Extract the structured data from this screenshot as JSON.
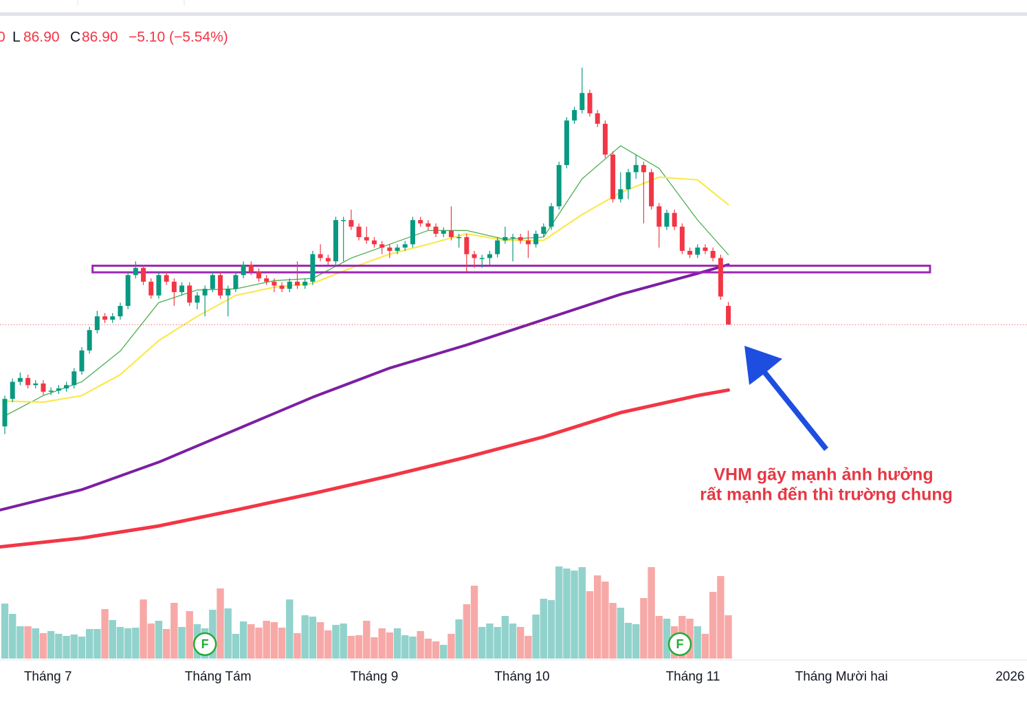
{
  "chart_data": {
    "type": "candlestick",
    "header": {
      "partial": "0",
      "low_label": "L",
      "low": "86.90",
      "close_label": "C",
      "close": "86.90",
      "change": "−5.10 (−5.54%)"
    },
    "annotation": [
      "VHM gãy mạnh ảnh hưởng",
      "rất mạnh đến thì trường chung"
    ],
    "xlim": [
      -0.625,
      132.8
    ],
    "ylim": [
      26.2,
      143.4
    ],
    "vlim": [
      0,
      30
    ],
    "xticks": [
      {
        "value": 5.6,
        "label": "Tháng 7"
      },
      {
        "value": 27.7,
        "label": "Tháng Tám"
      },
      {
        "value": 48,
        "label": "Tháng 9"
      },
      {
        "value": 67.2,
        "label": "Tháng 10"
      },
      {
        "value": 89.4,
        "label": "Tháng 11"
      },
      {
        "value": 108.7,
        "label": "Tháng Mười hai"
      },
      {
        "value": 130.6,
        "label": "2026"
      }
    ],
    "up_color": "#089981",
    "down_color": "#f23645",
    "volume_up_color": "#92d2cc",
    "volume_down_color": "#f7a9a7",
    "open": [
      68.4,
      73.4,
      76.5,
      77.2,
      75.9,
      76.2,
      74.7,
      74.9,
      75.3,
      75.9,
      78.4,
      82.2,
      85.9,
      88.4,
      87.8,
      88.4,
      90.3,
      95.9,
      97.2,
      94.7,
      92.2,
      95.9,
      94.7,
      92.8,
      94.0,
      90.9,
      92.2,
      93.4,
      95.9,
      92.2,
      93.4,
      95.9,
      97.8,
      96.5,
      95.3,
      94.7,
      94.0,
      93.4,
      94.7,
      94.0,
      94.7,
      99.7,
      99.0,
      98.4,
      105.9,
      105.9,
      104.7,
      102.8,
      102.2,
      101.5,
      100.9,
      100.3,
      100.9,
      101.5,
      105.9,
      105.3,
      104.7,
      103.4,
      104.0,
      102.8,
      102.8,
      99.7,
      99.0,
      99.0,
      99.7,
      102.2,
      102.8,
      102.8,
      102.2,
      101.5,
      103.4,
      104.7,
      108.4,
      115.9,
      124.0,
      125.9,
      129.0,
      125.3,
      123.4,
      117.8,
      109.7,
      111.5,
      114.6,
      115.9,
      114.6,
      108.4,
      104.7,
      107.2,
      104.7,
      100.3,
      99.6,
      100.9,
      100.3,
      99.0,
      90.3
    ],
    "high": [
      74.0,
      77.1,
      78.2,
      77.8,
      76.8,
      76.8,
      75.5,
      75.9,
      76.5,
      79.0,
      82.8,
      86.5,
      89.4,
      89.0,
      89.0,
      90.9,
      96.5,
      98.4,
      97.8,
      95.3,
      96.5,
      96.5,
      95.3,
      94.6,
      94.6,
      92.8,
      94.0,
      96.5,
      96.5,
      94.0,
      96.5,
      98.4,
      98.4,
      97.1,
      95.9,
      95.3,
      94.6,
      95.3,
      98.4,
      95.3,
      100.3,
      101.5,
      99.6,
      106.5,
      106.5,
      107.8,
      105.3,
      104.7,
      102.8,
      102.1,
      101.5,
      101.5,
      102.1,
      106.5,
      106.5,
      105.9,
      105.3,
      104.6,
      108.4,
      103.4,
      103.4,
      100.3,
      99.6,
      100.3,
      102.8,
      104.7,
      103.4,
      103.4,
      104.0,
      104.0,
      105.3,
      109.0,
      116.5,
      124.6,
      126.5,
      133.6,
      129.6,
      125.9,
      124.0,
      118.4,
      114.6,
      115.2,
      117.8,
      116.5,
      115.2,
      109.0,
      107.8,
      107.8,
      105.3,
      100.9,
      101.5,
      101.5,
      100.9,
      99.6,
      91.0
    ],
    "low": [
      67.0,
      72.8,
      75.9,
      75.3,
      75.3,
      74.1,
      74.1,
      74.3,
      74.7,
      75.3,
      77.8,
      81.6,
      85.3,
      87.2,
      87.2,
      87.8,
      89.7,
      95.3,
      94.1,
      91.6,
      91.6,
      94.1,
      90.3,
      92.2,
      90.3,
      89.7,
      88.4,
      92.8,
      91.6,
      88.4,
      92.8,
      95.3,
      95.9,
      94.7,
      94.1,
      92.8,
      92.8,
      92.8,
      93.4,
      93.4,
      94.1,
      98.4,
      97.8,
      97.8,
      98.4,
      104.1,
      102.2,
      101.6,
      100.9,
      99.7,
      99.0,
      99.7,
      100.3,
      100.9,
      104.7,
      104.1,
      102.8,
      102.8,
      102.2,
      100.9,
      96.5,
      97.2,
      97.2,
      97.8,
      99.1,
      101.6,
      98.4,
      101.6,
      99.0,
      100.9,
      102.8,
      104.1,
      107.8,
      115.3,
      123.4,
      125.3,
      124.7,
      122.8,
      117.2,
      109.1,
      109.1,
      109.7,
      113.4,
      105.3,
      107.8,
      100.9,
      104.1,
      104.1,
      99.7,
      99.0,
      99.0,
      99.7,
      98.4,
      91.4,
      86.9
    ],
    "close": [
      73.4,
      76.5,
      77.2,
      75.9,
      76.2,
      74.7,
      74.9,
      75.3,
      75.9,
      78.4,
      82.2,
      85.9,
      88.4,
      87.8,
      88.4,
      90.3,
      95.9,
      97.2,
      94.7,
      92.2,
      95.9,
      94.7,
      92.8,
      94.0,
      90.9,
      92.2,
      93.4,
      95.9,
      92.2,
      93.4,
      95.9,
      97.8,
      96.5,
      95.3,
      94.7,
      94.0,
      93.4,
      94.7,
      94.0,
      94.7,
      99.7,
      99.0,
      98.4,
      105.9,
      105.9,
      104.7,
      102.8,
      102.2,
      101.5,
      100.9,
      100.3,
      100.9,
      101.5,
      105.9,
      105.3,
      104.7,
      103.4,
      104.0,
      102.8,
      102.8,
      99.7,
      99.0,
      99.0,
      99.7,
      102.2,
      102.8,
      102.8,
      102.2,
      101.5,
      103.4,
      104.7,
      108.4,
      115.9,
      124.0,
      125.9,
      129.0,
      125.3,
      123.4,
      117.8,
      109.7,
      111.5,
      114.6,
      115.9,
      114.6,
      108.4,
      104.7,
      107.2,
      104.7,
      100.3,
      99.6,
      100.9,
      100.3,
      99.0,
      92.0,
      86.9
    ],
    "volume": [
      8,
      6.5,
      4.7,
      4.7,
      4.4,
      3.7,
      4,
      3.6,
      3.3,
      3.5,
      3.2,
      4.3,
      4.3,
      7.2,
      5.6,
      4.6,
      4.4,
      4.5,
      8.6,
      5.1,
      5.5,
      4.3,
      8.1,
      4.6,
      6.9,
      5,
      4.4,
      7.1,
      10.2,
      7.3,
      3.6,
      5.4,
      5,
      4.5,
      5.5,
      5.3,
      4.5,
      8.6,
      3.7,
      6.3,
      6.1,
      5.3,
      4.1,
      4.9,
      5.1,
      3.3,
      3.4,
      5.5,
      3.1,
      4.4,
      3.8,
      4.4,
      3.4,
      3.2,
      4,
      2.9,
      2.5,
      2,
      3.6,
      5.7,
      7.9,
      10.6,
      4.6,
      5.1,
      4.6,
      6.2,
      5.1,
      4.6,
      3.3,
      6.4,
      8.7,
      8.5,
      13.4,
      13.1,
      12.8,
      13.3,
      9.8,
      12.1,
      11.2,
      8.1,
      7.4,
      5.2,
      5,
      8.8,
      13.3,
      6.2,
      5.8,
      4.7,
      6.2,
      5.8,
      4.7,
      3.6,
      9.7,
      12,
      6.3
    ],
    "series": [
      {
        "color": "#4caf50",
        "width": 1.3,
        "x": [
          0,
          5,
          10,
          15,
          20,
          25,
          30,
          35,
          40,
          45,
          50,
          55,
          60,
          65,
          70,
          75,
          80,
          85,
          90,
          94
        ],
        "values": [
          70.3,
          74.0,
          76.5,
          82.1,
          90.9,
          93.2,
          93.4,
          94.9,
          95.3,
          99.0,
          101.5,
          104.0,
          104.0,
          102.4,
          102.8,
          113.4,
          119.4,
          115.3,
          105.9,
          99.6
        ]
      },
      {
        "color": "#fbe94c",
        "width": 2.2,
        "x": [
          0,
          5,
          10,
          15,
          20,
          25,
          30,
          35,
          40,
          45,
          50,
          55,
          60,
          65,
          70,
          75,
          80,
          85,
          90,
          94
        ],
        "values": [
          73.0,
          72.8,
          74.0,
          77.8,
          84.0,
          88.4,
          92.2,
          93.7,
          94.4,
          97.2,
          99.7,
          101.5,
          103.4,
          102.2,
          102.2,
          106.9,
          110.9,
          113.7,
          113.2,
          108.7
        ]
      },
      {
        "color": "#7b1fa2",
        "width": 4,
        "x": [
          -0.625,
          10,
          20,
          30,
          40,
          50,
          60,
          70,
          80,
          90,
          94
        ],
        "values": [
          53.2,
          56.9,
          61.9,
          67.8,
          73.7,
          79.0,
          83.2,
          87.8,
          92.4,
          96.2,
          97.8
        ]
      },
      {
        "color": "#f23645",
        "width": 5,
        "x": [
          -0.625,
          10,
          20,
          30,
          40,
          50,
          60,
          70,
          80,
          90,
          94
        ],
        "values": [
          46.5,
          48.1,
          50.3,
          53.2,
          56.2,
          59.4,
          62.8,
          66.5,
          70.9,
          74.0,
          75.0
        ]
      }
    ],
    "support_zone": {
      "x": [
        11.4,
        120.2
      ],
      "y": [
        96.4,
        97.6
      ],
      "color": "#9c27b0"
    },
    "last_price": 86.9,
    "events": [
      {
        "x": 26,
        "label": "F"
      },
      {
        "x": 87.7,
        "label": "F"
      }
    ]
  }
}
